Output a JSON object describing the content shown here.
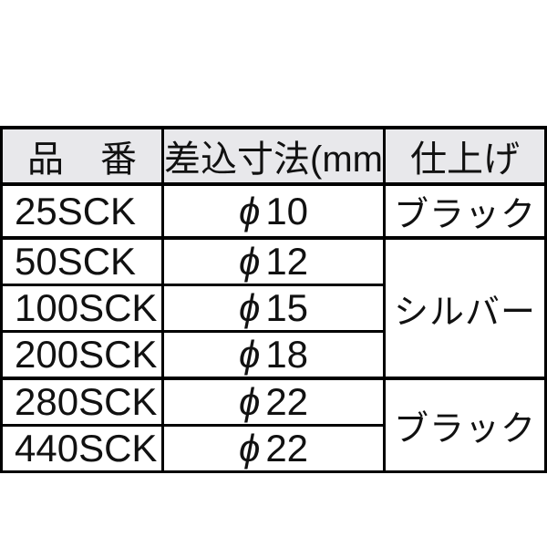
{
  "page": {
    "background_color": "#ffffff"
  },
  "spec_table": {
    "colors": {
      "header_background": "#e8e8eb",
      "border": "#000000",
      "text": "#111111",
      "body_background": "#ffffff"
    },
    "columns": {
      "part_number": "品　番",
      "insert_dimension": "差込寸法(mm)",
      "finish": "仕上げ"
    },
    "rows": [
      {
        "part_number": "25SCK",
        "dim_symbol": "ϕ",
        "dim_value": "10"
      },
      {
        "part_number": "50SCK",
        "dim_symbol": "ϕ",
        "dim_value": "12"
      },
      {
        "part_number": "100SCK",
        "dim_symbol": "ϕ",
        "dim_value": "15"
      },
      {
        "part_number": "200SCK",
        "dim_symbol": "ϕ",
        "dim_value": "18"
      },
      {
        "part_number": "280SCK",
        "dim_symbol": "ϕ",
        "dim_value": "22"
      },
      {
        "part_number": "440SCK",
        "dim_symbol": "ϕ",
        "dim_value": "22"
      }
    ],
    "finish_groups": [
      {
        "label": "ブラック",
        "rowspan": 1
      },
      {
        "label": "シルバー",
        "rowspan": 3
      },
      {
        "label": "ブラック",
        "rowspan": 2
      }
    ]
  }
}
